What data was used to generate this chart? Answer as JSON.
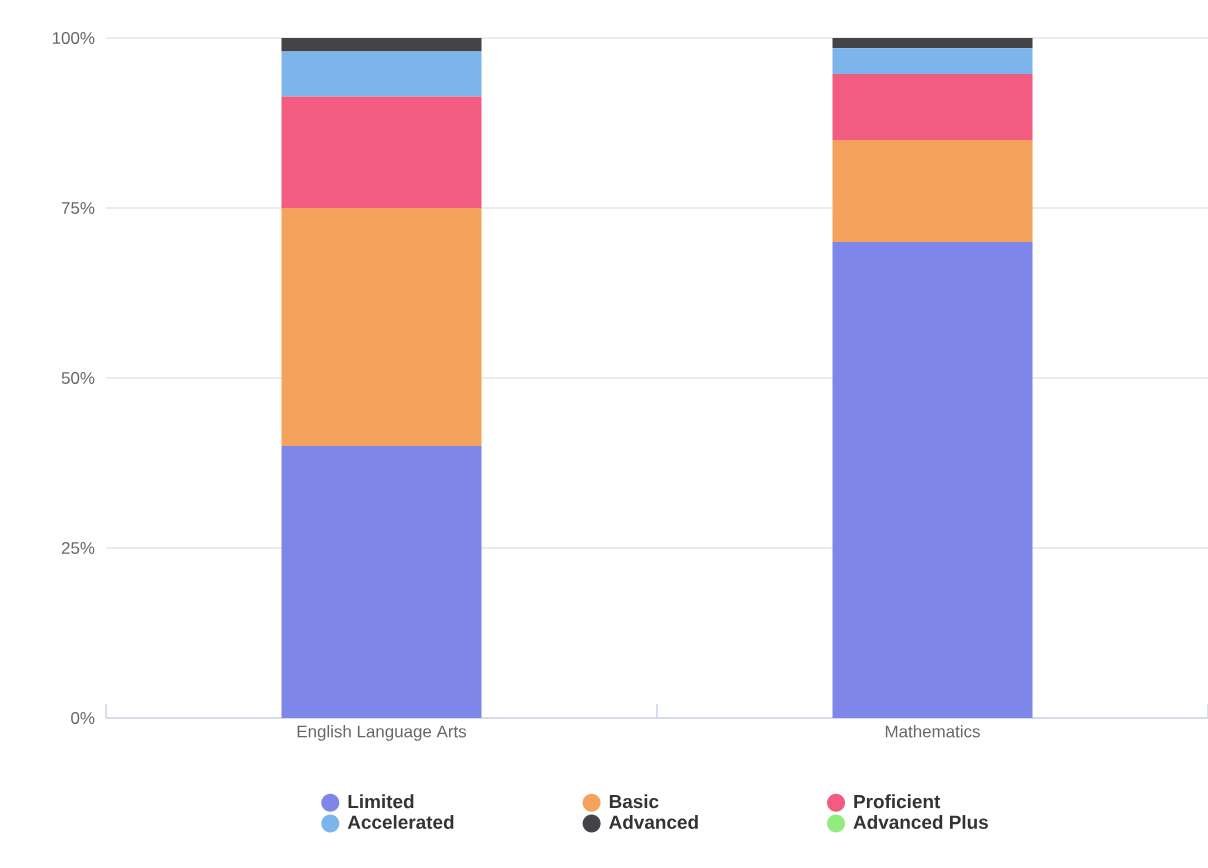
{
  "chart_data": {
    "type": "bar",
    "stacked": true,
    "categories": [
      "English Language Arts",
      "Mathematics"
    ],
    "series": [
      {
        "name": "Limited",
        "color": "#7f86e9",
        "values": [
          40,
          70
        ]
      },
      {
        "name": "Basic",
        "color": "#f5a35c",
        "values": [
          35,
          15
        ]
      },
      {
        "name": "Proficient",
        "color": "#f15c80",
        "values": [
          16.4,
          9.7
        ]
      },
      {
        "name": "Accelerated",
        "color": "#7cb5ec",
        "values": [
          6.6,
          3.8
        ]
      },
      {
        "name": "Advanced",
        "color": "#434348",
        "values": [
          2,
          1.5
        ]
      },
      {
        "name": "Advanced Plus",
        "color": "#90ed7d",
        "values": [
          0,
          0
        ]
      }
    ],
    "ylim": [
      0,
      100
    ],
    "yticks": [
      {
        "value": 0,
        "label": "0%"
      },
      {
        "value": 25,
        "label": "25%"
      },
      {
        "value": 50,
        "label": "50%"
      },
      {
        "value": 75,
        "label": "75%"
      },
      {
        "value": 100,
        "label": "100%"
      }
    ],
    "grid": "y",
    "legend": "bottom"
  }
}
